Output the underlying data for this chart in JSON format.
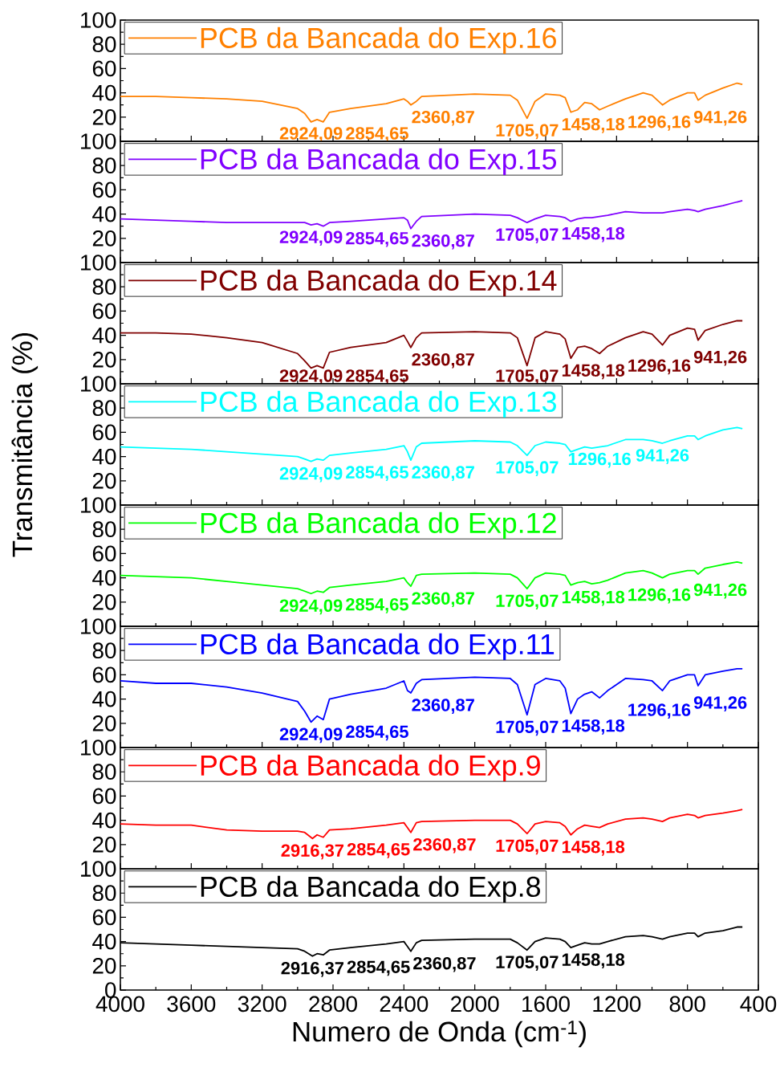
{
  "chart_data": [
    {
      "type": "line",
      "x": [
        4000,
        3800,
        3600,
        3400,
        3200,
        3000,
        2960,
        2924,
        2890,
        2855,
        2820,
        2700,
        2500,
        2400,
        2380,
        2361,
        2330,
        2300,
        2000,
        1800,
        1760,
        1705,
        1660,
        1600,
        1520,
        1490,
        1458,
        1420,
        1380,
        1340,
        1296,
        1250,
        1150,
        1050,
        1000,
        941,
        900,
        800,
        760,
        740,
        700,
        600,
        520,
        490
      ],
      "series": [
        {
          "name": "PCB da Bancada do Exp.16",
          "color": "#ff8000",
          "values": [
            37,
            37,
            36,
            35,
            33,
            27,
            23,
            16,
            18,
            16,
            24,
            27,
            31,
            35,
            33,
            30,
            33,
            37,
            39,
            38,
            34,
            19,
            33,
            39,
            38,
            36,
            24,
            26,
            32,
            31,
            26,
            29,
            35,
            40,
            38,
            30,
            34,
            40,
            40,
            34,
            38,
            44,
            48,
            47
          ]
        }
      ],
      "xlim": [
        4000,
        400
      ],
      "xticks": [
        4000,
        3600,
        3200,
        2800,
        2400,
        2000,
        1600,
        1200,
        800,
        400
      ],
      "ylim": [
        0,
        100
      ],
      "yticks": [
        20,
        40,
        60,
        80,
        100
      ],
      "legend": "top left",
      "tick_labels": "y",
      "annotations": [
        {
          "text": "2924,09",
          "x": 2924,
          "y": 16
        },
        {
          "text": "2854,65",
          "x": 2855,
          "y": 16
        },
        {
          "text": "2360,87",
          "x": 2361,
          "y": 30
        },
        {
          "text": "1705,07",
          "x": 1705,
          "y": 19
        },
        {
          "text": "1458,18",
          "x": 1458,
          "y": 24
        },
        {
          "text": "1296,16",
          "x": 1296,
          "y": 26
        },
        {
          "text": "941,26",
          "x": 941,
          "y": 30
        }
      ]
    },
    {
      "type": "line",
      "x": [
        4000,
        3800,
        3600,
        3400,
        3200,
        3000,
        2960,
        2924,
        2890,
        2855,
        2820,
        2700,
        2500,
        2400,
        2380,
        2361,
        2330,
        2300,
        2000,
        1800,
        1760,
        1705,
        1660,
        1600,
        1520,
        1490,
        1458,
        1420,
        1380,
        1340,
        1296,
        1250,
        1150,
        1050,
        1000,
        941,
        900,
        800,
        760,
        740,
        700,
        600,
        520,
        490
      ],
      "series": [
        {
          "name": "PCB da Bancada do Exp.15",
          "color": "#8000ff",
          "values": [
            36,
            35,
            34,
            33,
            33,
            33,
            33,
            31,
            32,
            30,
            33,
            34,
            36,
            37,
            35,
            28,
            34,
            38,
            40,
            39,
            37,
            33,
            36,
            39,
            38,
            37,
            34,
            36,
            37,
            37,
            38,
            39,
            42,
            41,
            41,
            41,
            42,
            44,
            43,
            42,
            44,
            47,
            50,
            51
          ]
        }
      ],
      "xlim": [
        4000,
        400
      ],
      "xticks": [
        4000,
        3600,
        3200,
        2800,
        2400,
        2000,
        1600,
        1200,
        800,
        400
      ],
      "ylim": [
        0,
        100
      ],
      "yticks": [
        20,
        40,
        60,
        80,
        100
      ],
      "legend": "top left",
      "tick_labels": "y",
      "annotations": [
        {
          "text": "2924,09",
          "x": 2924,
          "y": 31
        },
        {
          "text": "2854,65",
          "x": 2855,
          "y": 30
        },
        {
          "text": "2360,87",
          "x": 2361,
          "y": 28
        },
        {
          "text": "1705,07",
          "x": 1705,
          "y": 33
        },
        {
          "text": "1458,18",
          "x": 1458,
          "y": 34
        }
      ]
    },
    {
      "type": "line",
      "x": [
        4000,
        3800,
        3600,
        3400,
        3200,
        3000,
        2960,
        2924,
        2890,
        2855,
        2820,
        2700,
        2500,
        2400,
        2380,
        2361,
        2330,
        2300,
        2000,
        1800,
        1760,
        1705,
        1660,
        1600,
        1520,
        1490,
        1458,
        1420,
        1380,
        1340,
        1296,
        1250,
        1150,
        1050,
        1000,
        941,
        900,
        800,
        760,
        740,
        700,
        600,
        520,
        490
      ],
      "series": [
        {
          "name": "PCB da Bancada do Exp.14",
          "color": "#800000",
          "values": [
            42,
            42,
            41,
            38,
            34,
            25,
            19,
            13,
            15,
            13,
            26,
            30,
            34,
            40,
            35,
            30,
            38,
            42,
            43,
            42,
            38,
            15,
            38,
            43,
            41,
            37,
            21,
            30,
            31,
            29,
            25,
            31,
            38,
            43,
            41,
            32,
            40,
            46,
            45,
            36,
            44,
            49,
            52,
            52
          ]
        }
      ],
      "xlim": [
        4000,
        400
      ],
      "xticks": [
        4000,
        3600,
        3200,
        2800,
        2400,
        2000,
        1600,
        1200,
        800,
        400
      ],
      "ylim": [
        0,
        100
      ],
      "yticks": [
        20,
        40,
        60,
        80,
        100
      ],
      "legend": "top left",
      "tick_labels": "y",
      "annotations": [
        {
          "text": "2924,09",
          "x": 2924,
          "y": 13
        },
        {
          "text": "2854,65",
          "x": 2855,
          "y": 13
        },
        {
          "text": "2360,87",
          "x": 2361,
          "y": 30
        },
        {
          "text": "1705,07",
          "x": 1705,
          "y": 15
        },
        {
          "text": "1458,18",
          "x": 1458,
          "y": 21
        },
        {
          "text": "1296,16",
          "x": 1296,
          "y": 25
        },
        {
          "text": "941,26",
          "x": 941,
          "y": 32
        }
      ]
    },
    {
      "type": "line",
      "ylabel": "Transmitância (%)",
      "x": [
        4000,
        3800,
        3600,
        3400,
        3200,
        3000,
        2960,
        2924,
        2890,
        2855,
        2820,
        2700,
        2500,
        2400,
        2380,
        2361,
        2330,
        2300,
        2000,
        1800,
        1760,
        1705,
        1660,
        1600,
        1520,
        1490,
        1458,
        1420,
        1380,
        1340,
        1296,
        1250,
        1150,
        1050,
        1000,
        941,
        900,
        800,
        760,
        740,
        700,
        600,
        520,
        490
      ],
      "series": [
        {
          "name": "PCB da Bancada do Exp.13",
          "color": "#00ffff",
          "values": [
            48,
            47,
            46,
            44,
            42,
            40,
            38,
            36,
            38,
            37,
            41,
            43,
            46,
            49,
            44,
            37,
            48,
            51,
            53,
            52,
            49,
            41,
            49,
            52,
            51,
            50,
            44,
            46,
            48,
            47,
            48,
            49,
            54,
            54,
            53,
            51,
            53,
            57,
            57,
            54,
            57,
            62,
            64,
            63
          ]
        }
      ],
      "xlim": [
        4000,
        400
      ],
      "xticks": [
        4000,
        3600,
        3200,
        2800,
        2400,
        2000,
        1600,
        1200,
        800,
        400
      ],
      "ylim": [
        0,
        100
      ],
      "yticks": [
        20,
        40,
        60,
        80,
        100
      ],
      "legend": "top left",
      "tick_labels": "y",
      "annotations": [
        {
          "text": "2924,09",
          "x": 2924,
          "y": 36
        },
        {
          "text": "2854,65",
          "x": 2855,
          "y": 37
        },
        {
          "text": "2360,87",
          "x": 2361,
          "y": 37
        },
        {
          "text": "1705,07",
          "x": 1705,
          "y": 41
        },
        {
          "text": "1296,16",
          "x": 1296,
          "y": 48
        },
        {
          "text": "941,26",
          "x": 941,
          "y": 51
        }
      ]
    },
    {
      "type": "line",
      "x": [
        4000,
        3800,
        3600,
        3400,
        3200,
        3000,
        2960,
        2924,
        2890,
        2855,
        2820,
        2700,
        2500,
        2400,
        2380,
        2361,
        2330,
        2300,
        2000,
        1800,
        1760,
        1705,
        1660,
        1600,
        1520,
        1490,
        1458,
        1420,
        1380,
        1340,
        1296,
        1250,
        1150,
        1050,
        1000,
        941,
        900,
        800,
        760,
        740,
        700,
        600,
        520,
        490
      ],
      "series": [
        {
          "name": "PCB da Bancada do Exp.12",
          "color": "#00ff00",
          "values": [
            42,
            41,
            40,
            37,
            34,
            31,
            29,
            27,
            29,
            28,
            32,
            34,
            37,
            40,
            36,
            33,
            42,
            43,
            44,
            43,
            40,
            31,
            40,
            44,
            43,
            42,
            34,
            36,
            37,
            35,
            36,
            38,
            44,
            46,
            44,
            40,
            43,
            46,
            46,
            43,
            48,
            51,
            53,
            52
          ]
        }
      ],
      "xlim": [
        4000,
        400
      ],
      "xticks": [
        4000,
        3600,
        3200,
        2800,
        2400,
        2000,
        1600,
        1200,
        800,
        400
      ],
      "ylim": [
        0,
        100
      ],
      "yticks": [
        20,
        40,
        60,
        80,
        100
      ],
      "legend": "top left",
      "tick_labels": "y",
      "annotations": [
        {
          "text": "2924,09",
          "x": 2924,
          "y": 27
        },
        {
          "text": "2854,65",
          "x": 2855,
          "y": 28
        },
        {
          "text": "2360,87",
          "x": 2361,
          "y": 33
        },
        {
          "text": "1705,07",
          "x": 1705,
          "y": 31
        },
        {
          "text": "1458,18",
          "x": 1458,
          "y": 34
        },
        {
          "text": "1296,16",
          "x": 1296,
          "y": 36
        },
        {
          "text": "941,26",
          "x": 941,
          "y": 40
        }
      ]
    },
    {
      "type": "line",
      "x": [
        4000,
        3800,
        3600,
        3400,
        3200,
        3000,
        2960,
        2924,
        2890,
        2855,
        2820,
        2700,
        2500,
        2400,
        2380,
        2361,
        2330,
        2300,
        2000,
        1800,
        1760,
        1705,
        1660,
        1600,
        1520,
        1490,
        1458,
        1420,
        1380,
        1340,
        1296,
        1250,
        1150,
        1050,
        1000,
        941,
        900,
        800,
        760,
        740,
        700,
        600,
        520,
        490
      ],
      "series": [
        {
          "name": "PCB da Bancada do Exp.11",
          "color": "#0000ff",
          "values": [
            55,
            53,
            53,
            50,
            45,
            38,
            30,
            21,
            26,
            23,
            40,
            44,
            49,
            55,
            47,
            45,
            53,
            56,
            58,
            57,
            52,
            27,
            52,
            57,
            55,
            49,
            28,
            40,
            44,
            46,
            41,
            47,
            57,
            56,
            55,
            47,
            55,
            60,
            60,
            51,
            60,
            63,
            65,
            65
          ]
        }
      ],
      "xlim": [
        4000,
        400
      ],
      "xticks": [
        4000,
        3600,
        3200,
        2800,
        2400,
        2000,
        1600,
        1200,
        800,
        400
      ],
      "ylim": [
        0,
        100
      ],
      "yticks": [
        20,
        40,
        60,
        80,
        100
      ],
      "legend": "top left",
      "tick_labels": "y",
      "annotations": [
        {
          "text": "2924,09",
          "x": 2924,
          "y": 21
        },
        {
          "text": "2854,65",
          "x": 2855,
          "y": 23
        },
        {
          "text": "2360,87",
          "x": 2361,
          "y": 45
        },
        {
          "text": "1705,07",
          "x": 1705,
          "y": 27
        },
        {
          "text": "1458,18",
          "x": 1458,
          "y": 28
        },
        {
          "text": "1296,16",
          "x": 1296,
          "y": 41
        },
        {
          "text": "941,26",
          "x": 941,
          "y": 47
        }
      ]
    },
    {
      "type": "line",
      "x": [
        4000,
        3800,
        3600,
        3400,
        3200,
        3000,
        2960,
        2916,
        2890,
        2855,
        2820,
        2700,
        2500,
        2400,
        2380,
        2361,
        2330,
        2300,
        2000,
        1800,
        1760,
        1705,
        1660,
        1600,
        1520,
        1490,
        1458,
        1420,
        1380,
        1340,
        1296,
        1250,
        1150,
        1050,
        1000,
        941,
        900,
        800,
        760,
        740,
        700,
        600,
        520,
        490
      ],
      "series": [
        {
          "name": "PCB da Bancada do Exp.9",
          "color": "#ff0000",
          "values": [
            37,
            36,
            36,
            32,
            31,
            31,
            30,
            25,
            28,
            26,
            32,
            33,
            36,
            38,
            34,
            30,
            38,
            39,
            40,
            40,
            37,
            29,
            37,
            39,
            38,
            35,
            28,
            33,
            36,
            35,
            34,
            37,
            41,
            42,
            41,
            39,
            42,
            45,
            44,
            42,
            44,
            46,
            48,
            49
          ]
        }
      ],
      "xlim": [
        4000,
        400
      ],
      "xticks": [
        4000,
        3600,
        3200,
        2800,
        2400,
        2000,
        1600,
        1200,
        800,
        400
      ],
      "ylim": [
        0,
        100
      ],
      "yticks": [
        20,
        40,
        60,
        80,
        100
      ],
      "legend": "top left",
      "tick_labels": "y",
      "annotations": [
        {
          "text": "2916,37",
          "x": 2916,
          "y": 25
        },
        {
          "text": "2854,65",
          "x": 2855,
          "y": 26
        },
        {
          "text": "2360,87",
          "x": 2361,
          "y": 30
        },
        {
          "text": "1705,07",
          "x": 1705,
          "y": 29
        },
        {
          "text": "1458,18",
          "x": 1458,
          "y": 28
        }
      ]
    },
    {
      "type": "line",
      "xlabel": "Numero de Onda (cm$^{-1}$)",
      "x": [
        4000,
        3800,
        3600,
        3400,
        3200,
        3000,
        2960,
        2916,
        2890,
        2855,
        2820,
        2700,
        2500,
        2400,
        2380,
        2361,
        2330,
        2300,
        2000,
        1800,
        1760,
        1705,
        1660,
        1600,
        1520,
        1490,
        1458,
        1420,
        1380,
        1340,
        1296,
        1250,
        1150,
        1050,
        1000,
        941,
        900,
        800,
        760,
        740,
        700,
        600,
        520,
        490
      ],
      "series": [
        {
          "name": "PCB da Bancada do Exp.8",
          "color": "#000000",
          "values": [
            39,
            38,
            37,
            36,
            35,
            34,
            32,
            28,
            30,
            29,
            33,
            35,
            38,
            40,
            36,
            32,
            39,
            41,
            42,
            42,
            39,
            33,
            40,
            43,
            42,
            40,
            35,
            37,
            39,
            38,
            38,
            40,
            44,
            45,
            44,
            42,
            44,
            47,
            47,
            44,
            47,
            49,
            52,
            52
          ]
        }
      ],
      "xlim": [
        4000,
        400
      ],
      "xticks": [
        4000,
        3600,
        3200,
        2800,
        2400,
        2000,
        1600,
        1200,
        800,
        400
      ],
      "ylim": [
        0,
        100
      ],
      "yticks": [
        0,
        20,
        40,
        60,
        80,
        100
      ],
      "legend": "top left",
      "annotations": [
        {
          "text": "2916,37",
          "x": 2916,
          "y": 28
        },
        {
          "text": "2854,65",
          "x": 2855,
          "y": 29
        },
        {
          "text": "2360,87",
          "x": 2361,
          "y": 32
        },
        {
          "text": "1705,07",
          "x": 1705,
          "y": 33
        },
        {
          "text": "1458,18",
          "x": 1458,
          "y": 35
        }
      ]
    }
  ]
}
